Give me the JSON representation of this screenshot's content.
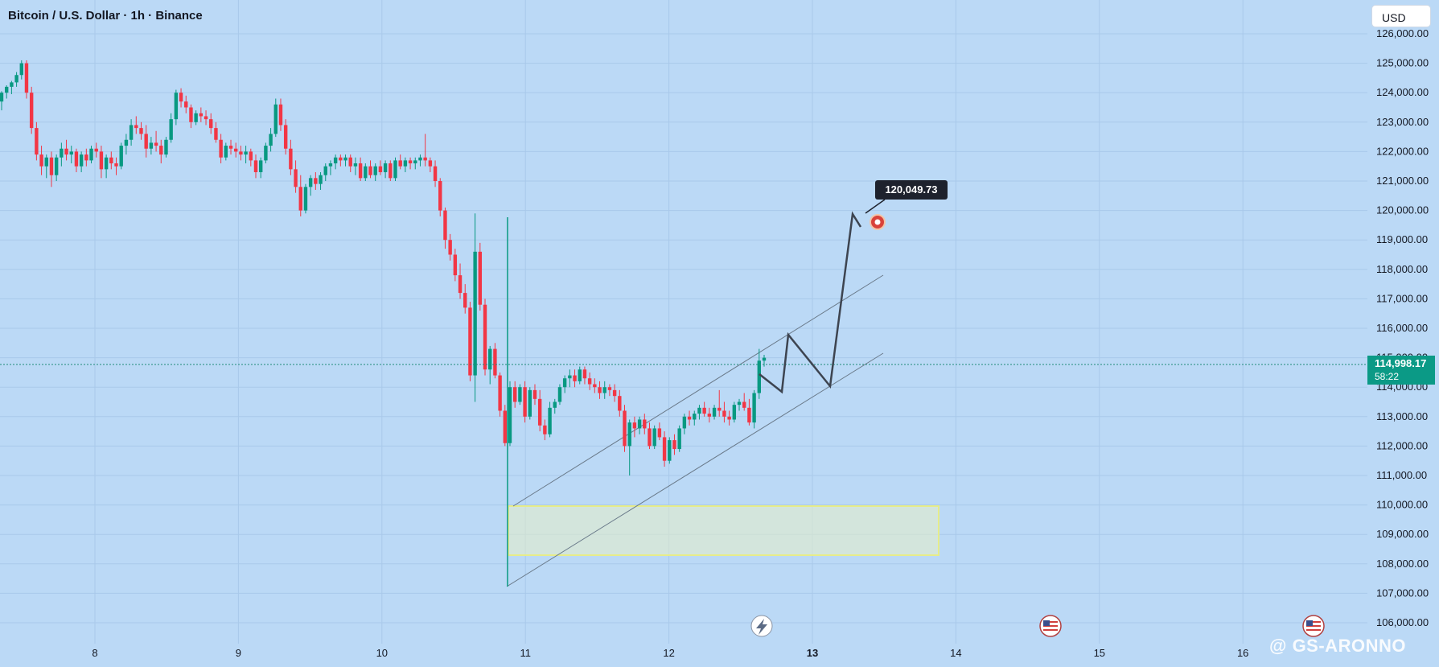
{
  "header": {
    "title": "Bitcoin / U.S. Dollar · 1h · Binance"
  },
  "currency_button": {
    "label": "USD"
  },
  "price_axis": {
    "ticks": [
      "126,000.00",
      "125,000.00",
      "124,000.00",
      "123,000.00",
      "122,000.00",
      "121,000.00",
      "120,000.00",
      "119,000.00",
      "118,000.00",
      "117,000.00",
      "116,000.00",
      "115,000.00",
      "114,000.00",
      "113,000.00",
      "112,000.00",
      "111,000.00",
      "110,000.00",
      "109,000.00",
      "108,000.00",
      "107,000.00",
      "106,000.00"
    ]
  },
  "last_price": {
    "value": "114,998.17",
    "countdown": "58:22"
  },
  "target_label": {
    "value": "120,049.73"
  },
  "watermark_text": "@ GS-ARONNO",
  "chart_data": {
    "type": "candlestick",
    "symbol": "BTCUSD",
    "interval": "1h",
    "exchange": "Binance",
    "x_ticks": [
      "8",
      "9",
      "10",
      "11",
      "12",
      "13",
      "14",
      "15",
      "16"
    ],
    "ylim": [
      105800,
      126300
    ],
    "last_price": 114998.17,
    "target_price": 120049.73,
    "colors": {
      "up": "#089981",
      "down": "#f23645",
      "background": "#bbd9f6"
    },
    "grid": true,
    "candles_ohlc": [
      [
        123700,
        124050,
        123400,
        124000
      ],
      [
        124000,
        124250,
        123800,
        124200
      ],
      [
        124200,
        124400,
        123950,
        124350
      ],
      [
        124350,
        124700,
        124200,
        124600
      ],
      [
        124600,
        125100,
        124450,
        125000
      ],
      [
        125000,
        125100,
        123800,
        124000
      ],
      [
        124000,
        124200,
        122600,
        122800
      ],
      [
        122800,
        123000,
        121700,
        121900
      ],
      [
        121900,
        122200,
        121200,
        121500
      ],
      [
        121500,
        121900,
        121100,
        121800
      ],
      [
        121800,
        122000,
        120800,
        121200
      ],
      [
        121200,
        121900,
        121000,
        121800
      ],
      [
        121800,
        122300,
        121500,
        122100
      ],
      [
        122100,
        122400,
        121700,
        121900
      ],
      [
        121900,
        122200,
        121600,
        122000
      ],
      [
        122000,
        122100,
        121300,
        121500
      ],
      [
        121500,
        122000,
        121300,
        121900
      ],
      [
        121900,
        122100,
        121500,
        121700
      ],
      [
        121700,
        122200,
        121600,
        122100
      ],
      [
        122100,
        122300,
        121800,
        122000
      ],
      [
        122000,
        122200,
        121100,
        121400
      ],
      [
        121400,
        121900,
        121100,
        121800
      ],
      [
        121800,
        122000,
        121400,
        121600
      ],
      [
        121600,
        121800,
        121200,
        121500
      ],
      [
        121500,
        122300,
        121400,
        122200
      ],
      [
        122200,
        122600,
        121900,
        122400
      ],
      [
        122400,
        123100,
        122200,
        122900
      ],
      [
        122900,
        123200,
        122600,
        122800
      ],
      [
        122800,
        123000,
        122400,
        122600
      ],
      [
        122600,
        122900,
        121800,
        122100
      ],
      [
        122100,
        122500,
        121900,
        122300
      ],
      [
        122300,
        122700,
        122000,
        122200
      ],
      [
        122200,
        122400,
        121600,
        121900
      ],
      [
        121900,
        122500,
        121800,
        122400
      ],
      [
        122400,
        123300,
        122300,
        123100
      ],
      [
        123100,
        124100,
        122900,
        124000
      ],
      [
        124000,
        124150,
        123500,
        123700
      ],
      [
        123700,
        123900,
        123300,
        123500
      ],
      [
        123500,
        123600,
        122800,
        123000
      ],
      [
        123000,
        123400,
        122900,
        123300
      ],
      [
        123300,
        123500,
        123000,
        123200
      ],
      [
        123200,
        123400,
        122900,
        123100
      ],
      [
        123100,
        123300,
        122600,
        122800
      ],
      [
        122800,
        123000,
        122300,
        122400
      ],
      [
        122400,
        122600,
        121600,
        121800
      ],
      [
        121800,
        122300,
        121700,
        122200
      ],
      [
        122200,
        122400,
        121900,
        122100
      ],
      [
        122100,
        122300,
        121800,
        122000
      ],
      [
        122000,
        122200,
        121700,
        121900
      ],
      [
        121900,
        122200,
        121600,
        122000
      ],
      [
        122000,
        122100,
        121500,
        121700
      ],
      [
        121700,
        121900,
        121100,
        121300
      ],
      [
        121300,
        121800,
        121100,
        121700
      ],
      [
        121700,
        122300,
        121600,
        122200
      ],
      [
        122200,
        122800,
        122000,
        122600
      ],
      [
        122600,
        123800,
        122500,
        123600
      ],
      [
        123600,
        123800,
        122700,
        122900
      ],
      [
        122900,
        123100,
        121900,
        122100
      ],
      [
        122100,
        122400,
        121200,
        121400
      ],
      [
        121400,
        121700,
        120600,
        120800
      ],
      [
        120800,
        121200,
        119800,
        120000
      ],
      [
        120000,
        120900,
        119900,
        120800
      ],
      [
        120800,
        121200,
        120500,
        121100
      ],
      [
        121100,
        121300,
        120700,
        120900
      ],
      [
        120900,
        121300,
        120700,
        121200
      ],
      [
        121200,
        121600,
        121000,
        121500
      ],
      [
        121500,
        121700,
        121200,
        121600
      ],
      [
        121600,
        121900,
        121400,
        121800
      ],
      [
        121800,
        121900,
        121500,
        121700
      ],
      [
        121700,
        121900,
        121500,
        121800
      ],
      [
        121800,
        121900,
        121300,
        121500
      ],
      [
        121500,
        121800,
        121200,
        121600
      ],
      [
        121600,
        121800,
        121000,
        121100
      ],
      [
        121100,
        121600,
        121000,
        121500
      ],
      [
        121500,
        121700,
        121100,
        121200
      ],
      [
        121200,
        121600,
        121000,
        121500
      ],
      [
        121500,
        121700,
        121200,
        121300
      ],
      [
        121300,
        121700,
        121100,
        121600
      ],
      [
        121600,
        121700,
        121000,
        121100
      ],
      [
        121100,
        121800,
        121000,
        121700
      ],
      [
        121700,
        121900,
        121400,
        121500
      ],
      [
        121500,
        121800,
        121300,
        121700
      ],
      [
        121700,
        121800,
        121400,
        121600
      ],
      [
        121600,
        121800,
        121400,
        121700
      ],
      [
        121700,
        121900,
        121500,
        121800
      ],
      [
        121800,
        122600,
        121500,
        121700
      ],
      [
        121700,
        121800,
        121300,
        121500
      ],
      [
        121500,
        121700,
        120800,
        121000
      ],
      [
        121000,
        121100,
        119800,
        120000
      ],
      [
        120000,
        120100,
        118700,
        119000
      ],
      [
        119000,
        119200,
        118300,
        118500
      ],
      [
        118500,
        118700,
        117600,
        117800
      ],
      [
        117800,
        118200,
        117000,
        117200
      ],
      [
        117200,
        117500,
        116500,
        116700
      ],
      [
        116700,
        116900,
        114200,
        114400
      ],
      [
        114400,
        119900,
        113500,
        118600
      ],
      [
        118600,
        118900,
        116600,
        116800
      ],
      [
        116800,
        117000,
        114400,
        114600
      ],
      [
        114600,
        115400,
        114100,
        115300
      ],
      [
        115300,
        115500,
        114300,
        114400
      ],
      [
        114400,
        114500,
        113000,
        113200
      ],
      [
        113200,
        113400,
        112000,
        112100
      ],
      [
        112100,
        114200,
        112000,
        114000
      ],
      [
        114000,
        114200,
        113300,
        113500
      ],
      [
        113500,
        114100,
        113400,
        114000
      ],
      [
        114000,
        114200,
        112800,
        113000
      ],
      [
        113000,
        114000,
        112900,
        113900
      ],
      [
        113900,
        114100,
        113400,
        113600
      ],
      [
        113600,
        113900,
        112500,
        112700
      ],
      [
        112700,
        112900,
        112200,
        112400
      ],
      [
        112400,
        113500,
        112300,
        113300
      ],
      [
        113300,
        113600,
        113100,
        113500
      ],
      [
        113500,
        114100,
        113400,
        114000
      ],
      [
        114000,
        114400,
        113800,
        114300
      ],
      [
        114300,
        114600,
        114000,
        114400
      ],
      [
        114400,
        114600,
        114000,
        114200
      ],
      [
        114200,
        114700,
        114100,
        114600
      ],
      [
        114600,
        114700,
        114100,
        114300
      ],
      [
        114300,
        114500,
        113900,
        114100
      ],
      [
        114100,
        114300,
        113800,
        114000
      ],
      [
        114000,
        114200,
        113600,
        113800
      ],
      [
        113800,
        114200,
        113600,
        114000
      ],
      [
        114000,
        114100,
        113700,
        113900
      ],
      [
        113900,
        114100,
        113500,
        113700
      ],
      [
        113700,
        113900,
        113000,
        113200
      ],
      [
        113200,
        113400,
        111800,
        112000
      ],
      [
        112000,
        112900,
        111000,
        112800
      ],
      [
        112800,
        113000,
        112300,
        112600
      ],
      [
        112600,
        113000,
        112400,
        112900
      ],
      [
        112900,
        113100,
        112400,
        112600
      ],
      [
        112600,
        112800,
        111900,
        112000
      ],
      [
        112000,
        112700,
        111900,
        112600
      ],
      [
        112600,
        112800,
        112200,
        112300
      ],
      [
        112300,
        112500,
        111300,
        111500
      ],
      [
        111500,
        112300,
        111400,
        112200
      ],
      [
        112200,
        112400,
        111700,
        111900
      ],
      [
        111900,
        112700,
        111800,
        112600
      ],
      [
        112600,
        113100,
        112400,
        113000
      ],
      [
        113000,
        113200,
        112700,
        112900
      ],
      [
        112900,
        113200,
        112700,
        113100
      ],
      [
        113100,
        113400,
        112900,
        113300
      ],
      [
        113300,
        113500,
        113000,
        113100
      ],
      [
        113100,
        113300,
        112800,
        113000
      ],
      [
        113000,
        113400,
        112900,
        113300
      ],
      [
        113300,
        113900,
        113000,
        113200
      ],
      [
        113200,
        113500,
        112800,
        113000
      ],
      [
        113000,
        113200,
        112700,
        112900
      ],
      [
        112900,
        113500,
        112800,
        113400
      ],
      [
        113400,
        113600,
        113200,
        113500
      ],
      [
        113500,
        113800,
        113200,
        113300
      ],
      [
        113300,
        113600,
        112700,
        112800
      ],
      [
        112800,
        113900,
        112600,
        113800
      ],
      [
        113800,
        115300,
        113600,
        114900
      ],
      [
        114900,
        115100,
        114700,
        115000
      ]
    ],
    "annotations": {
      "rising_channel": {
        "upper": [
          [
            11.0,
            110150
          ],
          [
            13.5,
            118000
          ]
        ],
        "lower": [
          [
            11.0,
            107500
          ],
          [
            13.5,
            115400
          ]
        ]
      },
      "demand_zone": {
        "x": [
          10.9,
          13.9
        ],
        "y": [
          108500,
          110200
        ]
      },
      "projected_path": [
        [
          12.6,
          114600
        ],
        [
          12.75,
          114000
        ],
        [
          12.85,
          115900
        ],
        [
          13.15,
          114200
        ],
        [
          13.3,
          120050
        ],
        [
          13.35,
          119800
        ]
      ],
      "liquidity_wick": {
        "x": 10.88,
        "y": [
          107500,
          119950
        ]
      }
    }
  }
}
